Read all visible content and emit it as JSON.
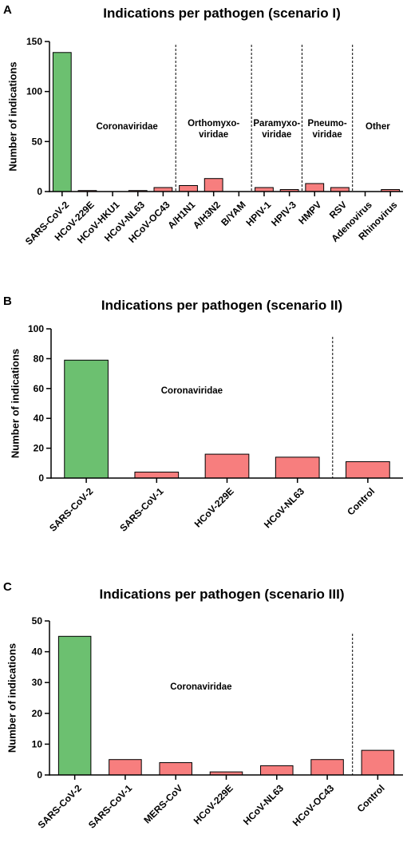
{
  "chart_data": [
    {
      "panel_label": "A",
      "type": "bar",
      "title": "Indications per pathogen (scenario I)",
      "ylabel": "Number of indications",
      "xlabel": "",
      "ylim": [
        0,
        150
      ],
      "yticks": [
        0,
        50,
        100,
        150
      ],
      "categories": [
        "SARS-CoV-2",
        "HCoV-229E",
        "HCoV-HKU1",
        "HCoV-NL63",
        "HCoV-OC43",
        "A/H1N1",
        "A/H3N2",
        "B/YAM",
        "HPIV-1",
        "HPIV-3",
        "HMPV",
        "RSV",
        "Adenovirus",
        "Rhinovirus"
      ],
      "values": [
        139,
        1,
        0,
        1,
        4,
        6,
        13,
        0,
        4,
        2,
        8,
        4,
        0,
        2
      ],
      "colors": [
        "#6cc070",
        "#f77e7e",
        "#f77e7e",
        "#f77e7e",
        "#f77e7e",
        "#f77e7e",
        "#f77e7e",
        "#f77e7e",
        "#f77e7e",
        "#f77e7e",
        "#f77e7e",
        "#f77e7e",
        "#f77e7e",
        "#f77e7e"
      ],
      "groups": [
        {
          "lines": [
            "Coronaviridae"
          ],
          "start": 0,
          "end": 4
        },
        {
          "lines": [
            "Orthomyxo-",
            "viridae"
          ],
          "start": 5,
          "end": 7
        },
        {
          "lines": [
            "Paramyxo-",
            "viridae"
          ],
          "start": 8,
          "end": 9
        },
        {
          "lines": [
            "Pneumo-",
            "viridae"
          ],
          "start": 10,
          "end": 11
        },
        {
          "lines": [
            "Other"
          ],
          "start": 12,
          "end": 13
        }
      ],
      "dividers_after": [
        4,
        7,
        9,
        11
      ],
      "grid": false
    },
    {
      "panel_label": "B",
      "type": "bar",
      "title": "Indications per pathogen (scenario II)",
      "ylabel": "Number of indications",
      "xlabel": "",
      "ylim": [
        0,
        100
      ],
      "yticks": [
        0,
        20,
        40,
        60,
        80,
        100
      ],
      "categories": [
        "SARS-CoV-2",
        "SARS-CoV-1",
        "HCoV-229E",
        "HCoV-NL63",
        "Control"
      ],
      "values": [
        79,
        4,
        16,
        14,
        11
      ],
      "colors": [
        "#6cc070",
        "#f77e7e",
        "#f77e7e",
        "#f77e7e",
        "#f77e7e"
      ],
      "groups": [
        {
          "lines": [
            "Coronaviridae"
          ],
          "start": 0,
          "end": 3
        }
      ],
      "dividers_after": [
        3
      ],
      "grid": false
    },
    {
      "panel_label": "C",
      "type": "bar",
      "title": "Indications per pathogen (scenario III)",
      "ylabel": "Number of indications",
      "xlabel": "",
      "ylim": [
        0,
        50
      ],
      "yticks": [
        0,
        10,
        20,
        30,
        40,
        50
      ],
      "categories": [
        "SARS-CoV-2",
        "SARS-CoV-1",
        "MERS-CoV",
        "HCoV-229E",
        "HCoV-NL63",
        "HCoV-OC43",
        "Control"
      ],
      "values": [
        45,
        5,
        4,
        1,
        3,
        5,
        8
      ],
      "colors": [
        "#6cc070",
        "#f77e7e",
        "#f77e7e",
        "#f77e7e",
        "#f77e7e",
        "#f77e7e",
        "#f77e7e"
      ],
      "groups": [
        {
          "lines": [
            "Coronaviridae"
          ],
          "start": 0,
          "end": 5
        }
      ],
      "dividers_after": [
        5
      ],
      "grid": false
    }
  ]
}
